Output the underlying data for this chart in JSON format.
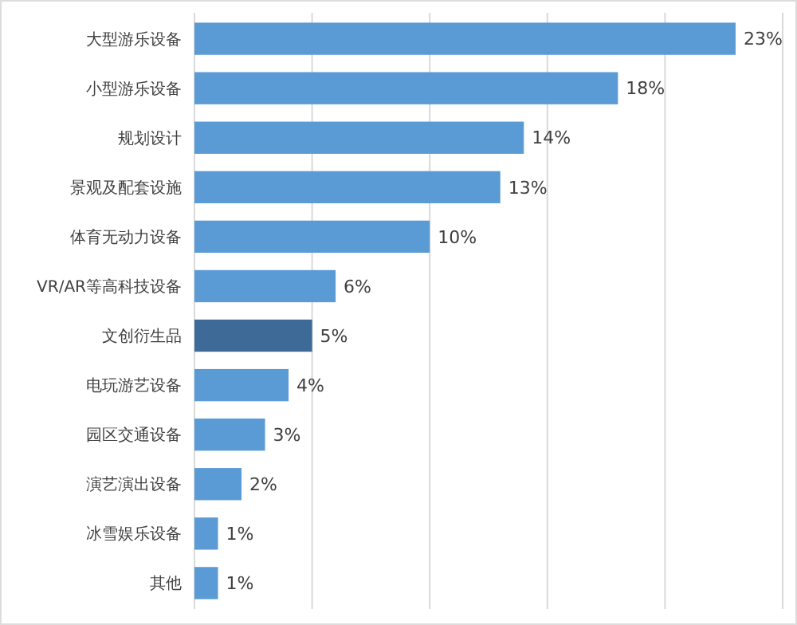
{
  "chart_data": {
    "type": "bar",
    "orientation": "horizontal",
    "categories": [
      "大型游乐设备",
      "小型游乐设备",
      "规划设计",
      "景观及配套设施",
      "体育无动力设备",
      "VR/AR等高科技设备",
      "文创衍生品",
      "电玩游艺设备",
      "园区交通设备",
      "演艺演出设备",
      "冰雪娱乐设备",
      "其他"
    ],
    "values": [
      23,
      18,
      14,
      13,
      10,
      6,
      5,
      4,
      3,
      2,
      1,
      1
    ],
    "value_labels": [
      "23%",
      "18%",
      "14%",
      "13%",
      "10%",
      "6%",
      "5%",
      "4%",
      "3%",
      "2%",
      "1%",
      "1%"
    ],
    "colors": [
      "#5b9bd5",
      "#5b9bd5",
      "#5b9bd5",
      "#5b9bd5",
      "#5b9bd5",
      "#5b9bd5",
      "#3d6a96",
      "#5b9bd5",
      "#5b9bd5",
      "#5b9bd5",
      "#5b9bd5",
      "#5b9bd5"
    ],
    "xlim": [
      0,
      25
    ],
    "xticks": [
      {
        "value": 0,
        "label": null
      },
      {
        "value": 5,
        "label": null
      },
      {
        "value": 10,
        "label": null
      },
      {
        "value": 15,
        "label": null
      },
      {
        "value": 20,
        "label": null
      },
      {
        "value": 25,
        "label": null
      }
    ],
    "grid": "x",
    "tick_labels": "y"
  }
}
